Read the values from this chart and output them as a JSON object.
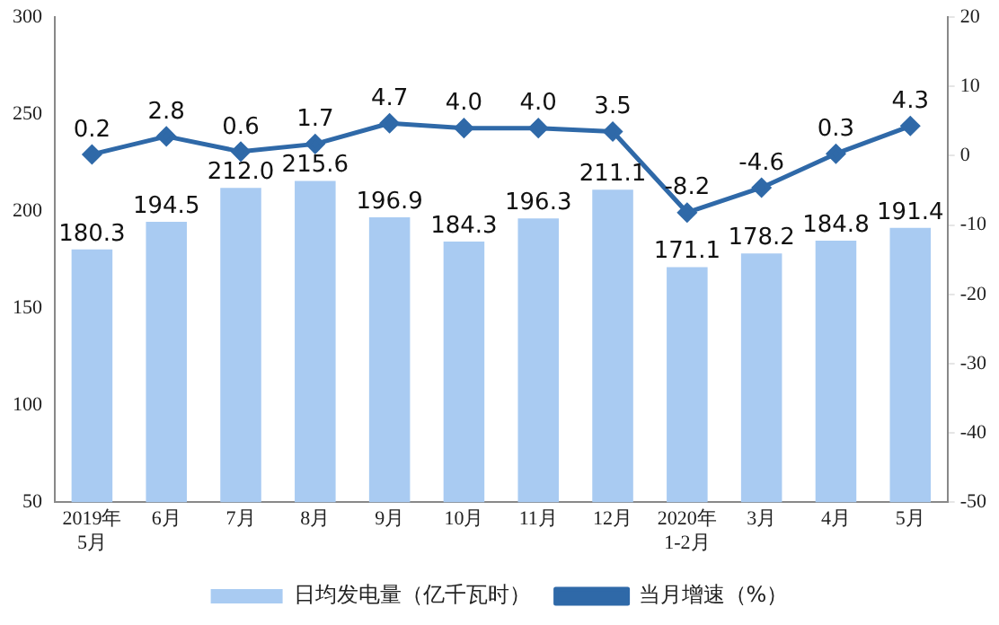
{
  "chart_data": {
    "type": "bar",
    "categories": [
      "2019年\n5月",
      "6月",
      "7月",
      "8月",
      "9月",
      "10月",
      "11月",
      "12月",
      "2020年\n1-2月",
      "3月",
      "4月",
      "5月"
    ],
    "series": [
      {
        "name": "日均发电量（亿千瓦时）",
        "color": "#a9cbf2",
        "values": [
          180.3,
          194.5,
          212.0,
          215.6,
          196.9,
          184.3,
          196.3,
          211.1,
          171.1,
          178.2,
          184.8,
          191.4
        ],
        "value_labels": [
          "180.3",
          "194.5",
          "212.0",
          "215.6",
          "196.9",
          "184.3",
          "196.3",
          "211.1",
          "171.1",
          "178.2",
          "184.8",
          "191.4"
        ]
      },
      {
        "name": "当月增速（%）",
        "type": "line",
        "axis": "y2",
        "color": "#2f69a8",
        "marker": "diamond",
        "values": [
          0.2,
          2.8,
          0.6,
          1.7,
          4.7,
          4.0,
          4.0,
          3.5,
          -8.2,
          -4.6,
          0.3,
          4.3
        ],
        "value_labels": [
          "0.2",
          "2.8",
          "0.6",
          "1.7",
          "4.7",
          "4.0",
          "4.0",
          "3.5",
          "-8.2",
          "-4.6",
          "0.3",
          "4.3"
        ]
      }
    ],
    "ylim": [
      50,
      300
    ],
    "yticks": [
      50,
      100,
      150,
      200,
      250,
      300
    ],
    "y2lim": [
      -50,
      20
    ],
    "y2ticks": [
      -50,
      -40,
      -30,
      -20,
      -10,
      0,
      10,
      20
    ],
    "grid": false,
    "legend": "bottom"
  }
}
